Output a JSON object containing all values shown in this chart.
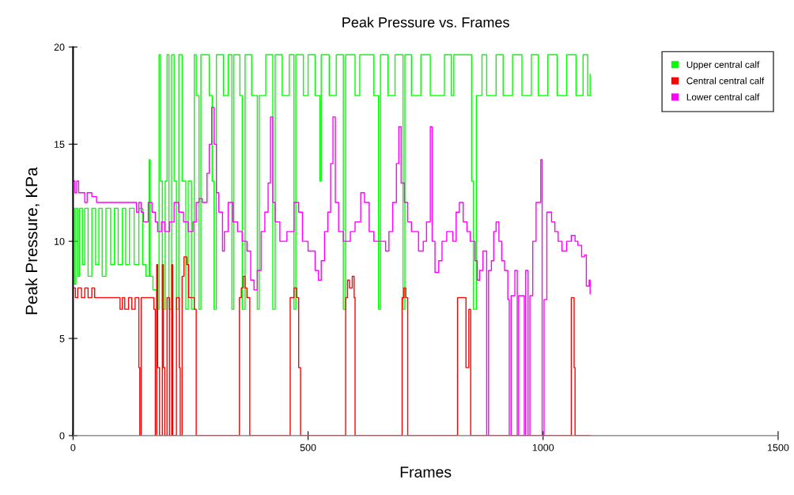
{
  "chart_data": {
    "type": "step",
    "title": "Peak Pressure vs. Frames",
    "xlabel": "Frames",
    "ylabel": "Peak Pressure, KPa",
    "xlim": [
      0,
      1500
    ],
    "xticks": [
      0,
      500,
      1000,
      1500
    ],
    "ylim": [
      0,
      20
    ],
    "yticks": [
      0,
      5,
      10,
      15,
      20
    ],
    "grid": false,
    "legend": "top right",
    "series": [
      {
        "name": "Upper central calf",
        "color": "#00ff00",
        "x": [
          0,
          3,
          6,
          10,
          14,
          20,
          25,
          32,
          40,
          48,
          55,
          62,
          70,
          80,
          88,
          96,
          105,
          112,
          120,
          130,
          140,
          148,
          155,
          162,
          164,
          170,
          178,
          183,
          186,
          190,
          196,
          200,
          204,
          210,
          215,
          220,
          225,
          232,
          240,
          245,
          252,
          258,
          262,
          268,
          272,
          290,
          296,
          300,
          305,
          320,
          330,
          338,
          342,
          355,
          360,
          366,
          380,
          392,
          396,
          410,
          425,
          430,
          445,
          460,
          470,
          474,
          490,
          500,
          515,
          525,
          528,
          545,
          560,
          575,
          580,
          600,
          610,
          640,
          650,
          654,
          670,
          685,
          702,
          706,
          720,
          740,
          760,
          790,
          805,
          810,
          848,
          852,
          858,
          870,
          880,
          900,
          915,
          935,
          955,
          975,
          990,
          1010,
          1030,
          1050,
          1070,
          1085,
          1095,
          1100
        ],
        "values": [
          11.7,
          7.8,
          11.7,
          8.2,
          11.7,
          8.8,
          11.7,
          8.2,
          11.7,
          8.8,
          11.7,
          8.2,
          11.7,
          8.8,
          11.7,
          8.8,
          11.7,
          8.8,
          11.7,
          8.8,
          11.7,
          8.8,
          8.2,
          14.2,
          8.2,
          7.5,
          6.5,
          19.6,
          13.1,
          6.5,
          13.1,
          19.6,
          6.5,
          19.6,
          13.1,
          6.5,
          19.6,
          13.1,
          6.5,
          13.1,
          6.5,
          19.6,
          17.5,
          6.5,
          19.6,
          17.5,
          13.1,
          6.5,
          19.6,
          17.5,
          19.6,
          6.5,
          19.6,
          17.5,
          6.5,
          19.6,
          17.5,
          6.5,
          17.5,
          19.6,
          6.5,
          19.6,
          17.5,
          19.6,
          6.5,
          19.6,
          17.5,
          19.6,
          17.5,
          13.1,
          19.6,
          17.5,
          19.6,
          6.5,
          19.6,
          17.5,
          19.6,
          17.5,
          6.5,
          19.6,
          17.5,
          19.6,
          6.5,
          19.6,
          17.5,
          19.6,
          17.5,
          19.6,
          17.5,
          19.6,
          13.1,
          6.5,
          17.5,
          19.6,
          17.5,
          19.6,
          17.5,
          19.6,
          17.5,
          19.6,
          17.5,
          19.6,
          17.5,
          19.6,
          17.5,
          19.6,
          17.5,
          18.6
        ]
      },
      {
        "name": "Central central calf",
        "color": "#ff0000",
        "x": [
          0,
          5,
          10,
          18,
          25,
          32,
          40,
          46,
          100,
          105,
          110,
          118,
          125,
          132,
          140,
          142,
          145,
          172,
          175,
          178,
          180,
          184,
          190,
          192,
          195,
          200,
          205,
          210,
          212,
          220,
          226,
          228,
          232,
          236,
          242,
          246,
          258,
          262,
          354,
          358,
          362,
          366,
          370,
          376,
          462,
          470,
          476,
          480,
          484,
          580,
          584,
          588,
          594,
          598,
          600,
          700,
          704,
          708,
          712,
          818,
          830,
          836,
          842,
          846,
          1060,
          1066,
          1068,
          1100
        ],
        "values": [
          7.6,
          7.1,
          7.6,
          7.1,
          7.6,
          7.1,
          7.6,
          7.1,
          6.5,
          7.1,
          6.5,
          7.1,
          6.5,
          7.1,
          3.5,
          0,
          7.1,
          6.5,
          0,
          8.8,
          3.5,
          0,
          8.8,
          3.5,
          0,
          7.1,
          0,
          8.8,
          0,
          7.1,
          3.5,
          0,
          8.2,
          9.2,
          8.8,
          7.1,
          6.5,
          0,
          7.1,
          7.6,
          8.2,
          7.6,
          7.1,
          0,
          7.1,
          7.6,
          7.1,
          3.5,
          0,
          7.1,
          8.0,
          7.6,
          8.2,
          7.1,
          0,
          7.1,
          7.6,
          7.1,
          0,
          7.1,
          7.1,
          3.5,
          6.5,
          0,
          7.1,
          3.5,
          0,
          0
        ]
      },
      {
        "name": "Lower central calf",
        "color": "#ff00ff",
        "x": [
          0,
          4,
          8,
          12,
          20,
          25,
          30,
          40,
          50,
          60,
          135,
          140,
          145,
          150,
          160,
          168,
          175,
          180,
          188,
          195,
          205,
          215,
          225,
          235,
          245,
          255,
          262,
          268,
          275,
          285,
          290,
          295,
          300,
          305,
          310,
          318,
          322,
          330,
          340,
          350,
          360,
          370,
          378,
          385,
          392,
          400,
          408,
          415,
          420,
          425,
          430,
          440,
          455,
          470,
          480,
          488,
          500,
          515,
          522,
          528,
          535,
          542,
          548,
          553,
          558,
          565,
          575,
          590,
          600,
          612,
          620,
          630,
          640,
          655,
          665,
          672,
          680,
          688,
          693,
          698,
          705,
          712,
          720,
          735,
          745,
          752,
          760,
          764,
          770,
          778,
          785,
          795,
          808,
          815,
          822,
          830,
          838,
          845,
          855,
          860,
          865,
          872,
          880,
          884,
          890,
          895,
          900,
          906,
          912,
          918,
          925,
          928,
          932,
          940,
          945,
          948,
          960,
          963,
          968,
          972,
          978,
          985,
          990,
          995,
          998,
          1002,
          1008,
          1018,
          1025,
          1032,
          1040,
          1050,
          1060,
          1068,
          1074,
          1082,
          1088,
          1092,
          1098,
          1100
        ],
        "values": [
          13.1,
          12.5,
          13.1,
          12.5,
          12.5,
          12.0,
          12.5,
          12.3,
          12.0,
          12.0,
          11.5,
          12.0,
          11.5,
          11.0,
          12.0,
          11.5,
          11.0,
          10.5,
          11.0,
          10.5,
          11.0,
          12.0,
          11.5,
          11.0,
          10.5,
          11.0,
          12.0,
          12.2,
          12.0,
          13.5,
          15.0,
          16.9,
          15.0,
          12.5,
          11.5,
          9.5,
          10.5,
          12.0,
          11.0,
          10.5,
          10.0,
          9.5,
          8.0,
          7.5,
          8.5,
          10.5,
          11.5,
          13.0,
          16.4,
          12.0,
          11.0,
          10.0,
          10.5,
          12.0,
          11.5,
          10.0,
          9.5,
          8.5,
          8.0,
          9.0,
          10.5,
          11.5,
          14.0,
          16.4,
          12.0,
          10.5,
          10.0,
          10.5,
          11.0,
          12.5,
          12.0,
          10.5,
          10.0,
          10.0,
          9.5,
          10.5,
          12.0,
          14.0,
          15.9,
          13.0,
          12.0,
          11.0,
          10.5,
          9.5,
          10.0,
          11.0,
          15.9,
          10.0,
          8.4,
          9.0,
          10.0,
          10.5,
          10.0,
          11.5,
          12.0,
          11.0,
          10.5,
          10.0,
          9.0,
          8.0,
          8.5,
          9.5,
          0,
          8.5,
          9.0,
          10.5,
          11.0,
          10.0,
          9.0,
          8.5,
          7.0,
          0,
          7.2,
          8.5,
          0,
          7.2,
          0,
          8.5,
          0,
          7.2,
          10.0,
          12.0,
          12.0,
          14.2,
          0,
          7.0,
          11.5,
          11.0,
          10.5,
          10.0,
          9.5,
          10.0,
          10.3,
          10.0,
          9.8,
          9.2,
          9.3,
          7.7,
          8.0,
          7.3
        ]
      }
    ]
  }
}
